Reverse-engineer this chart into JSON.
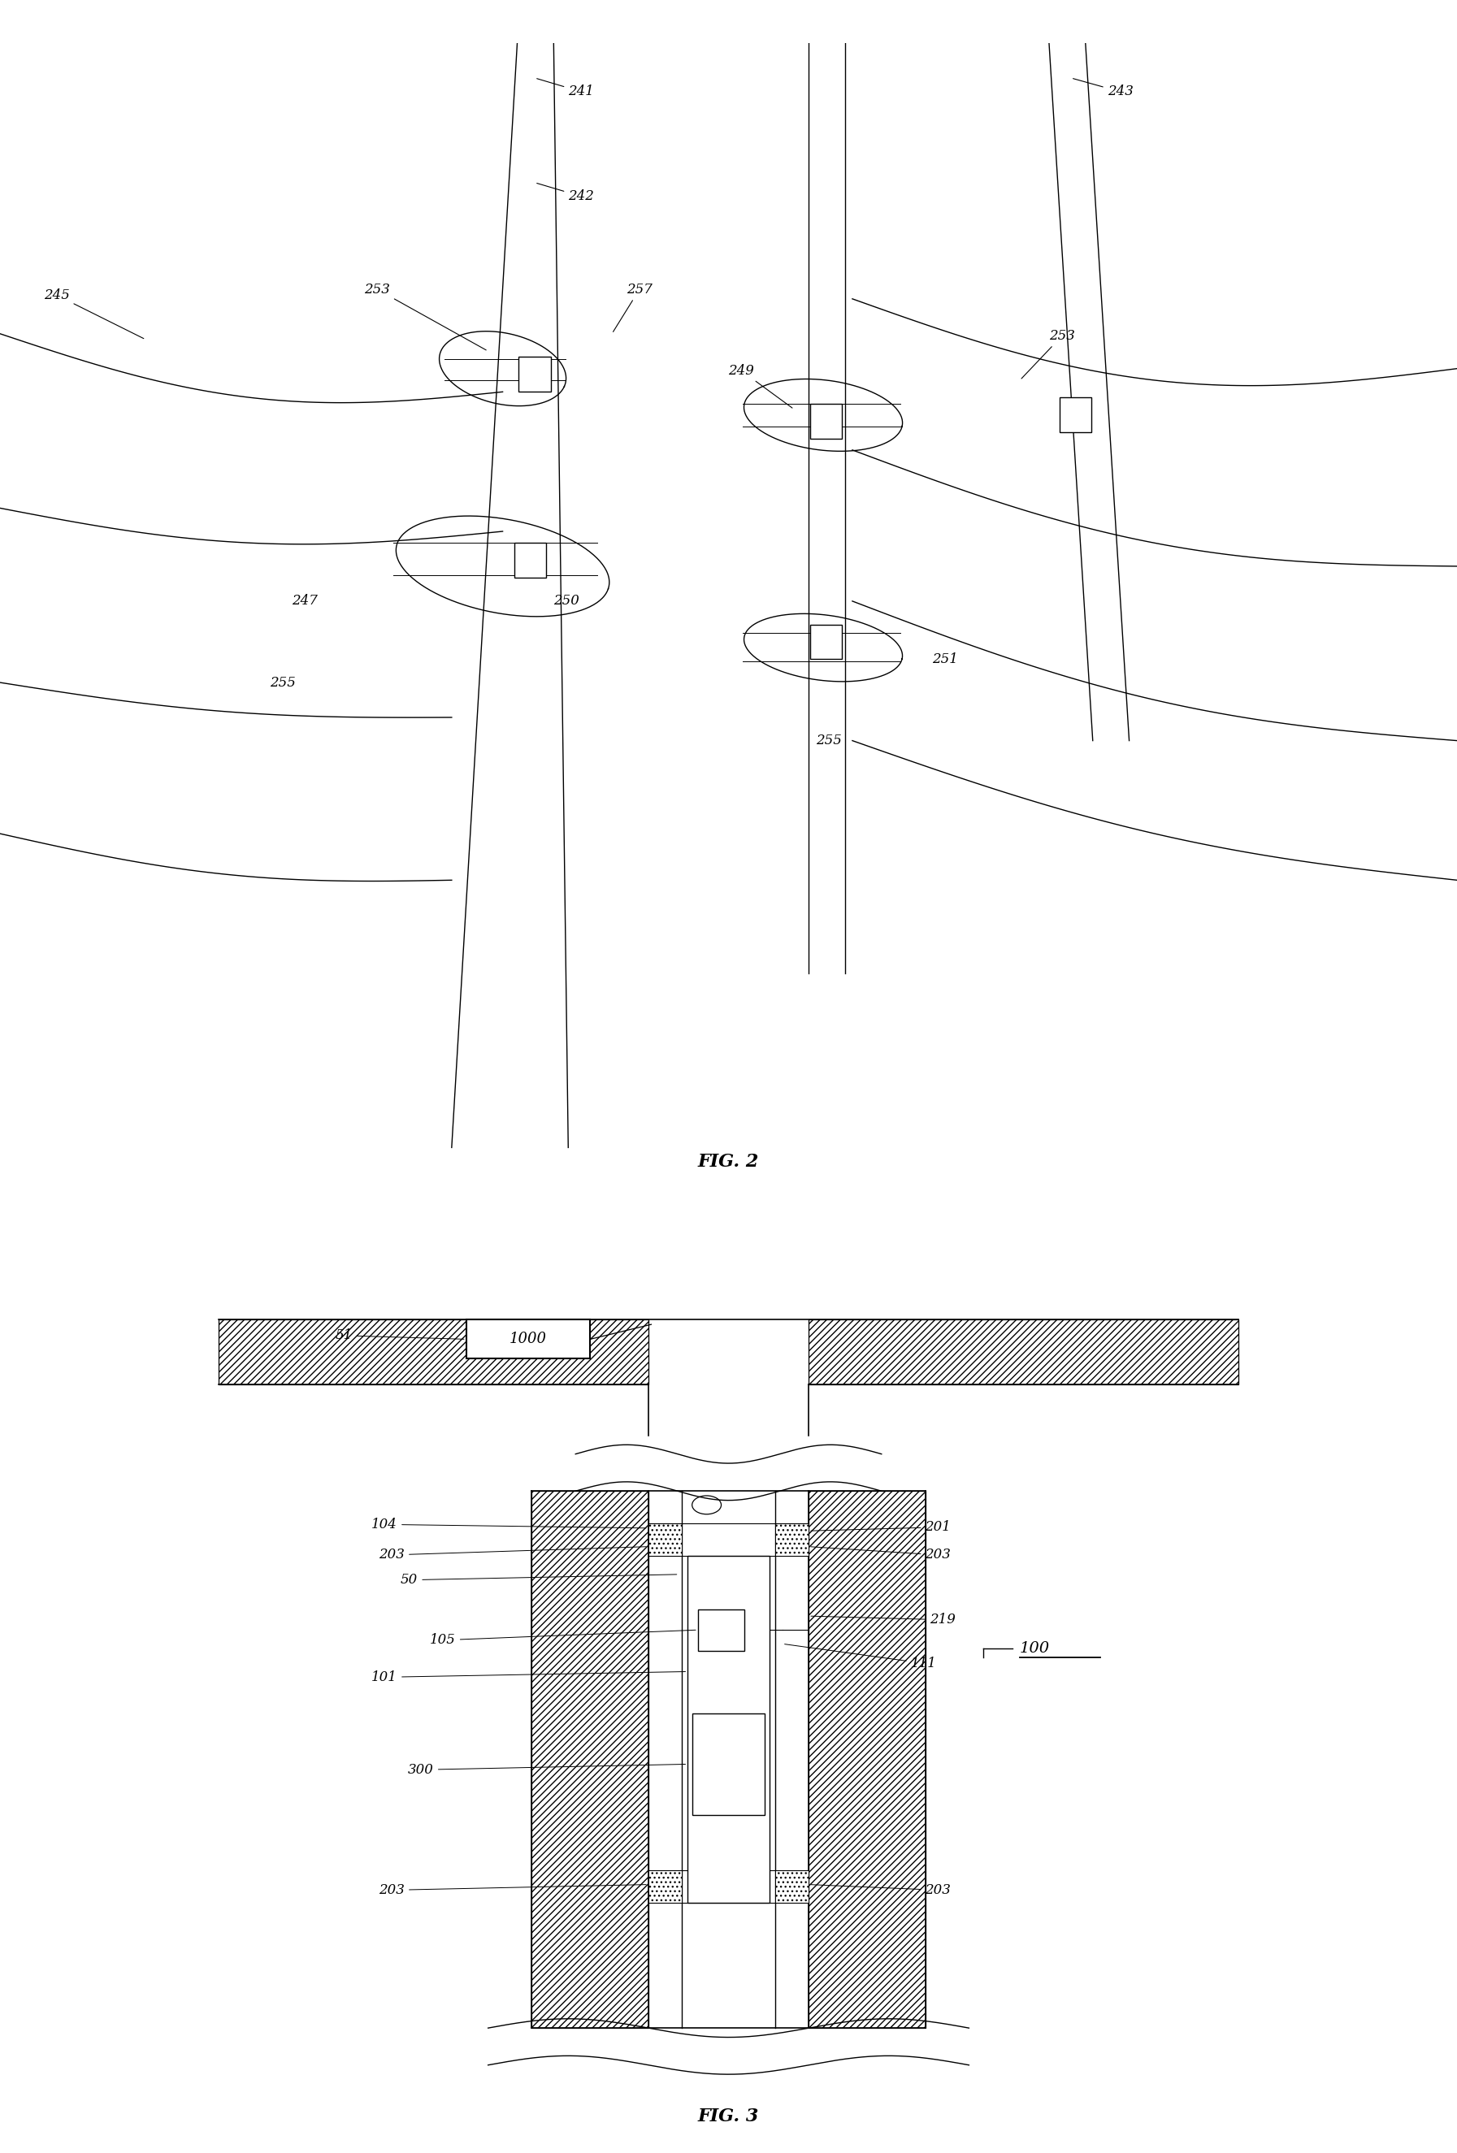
{
  "fig_width": 17.93,
  "fig_height": 26.5,
  "bg_color": "#ffffff",
  "lw": 1.0,
  "fs": 12,
  "fig2_title": "FIG. 2",
  "fig3_title": "FIG. 3"
}
